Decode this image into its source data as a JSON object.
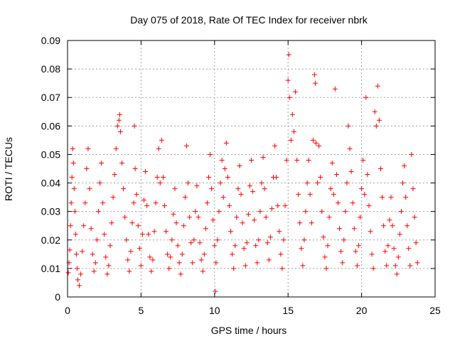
{
  "chart_data": {
    "type": "scatter",
    "title": "Day 075 of 2018, Rate Of TEC Index for receiver nbrk",
    "xlabel": "GPS time / hours",
    "ylabel": "ROTI / TECUs",
    "xlim": [
      0,
      25
    ],
    "ylim": [
      0,
      0.09
    ],
    "x_ticks": [
      "0",
      "5",
      "10",
      "15",
      "20",
      "25"
    ],
    "y_ticks": [
      "0",
      "0.01",
      "0.02",
      "0.03",
      "0.04",
      "0.05",
      "0.06",
      "0.07",
      "0.08",
      "0.09"
    ],
    "grid": true,
    "marker": "+",
    "point_color": "#ff0000",
    "series": [
      {
        "points": [
          [
            0.05,
            0.0085
          ],
          [
            0.1,
            0.012
          ],
          [
            0.15,
            0.0165
          ],
          [
            0.2,
            0.025
          ],
          [
            0.25,
            0.033
          ],
          [
            0.3,
            0.042
          ],
          [
            0.35,
            0.052
          ],
          [
            0.4,
            0.047
          ],
          [
            0.45,
            0.038
          ],
          [
            0.5,
            0.03
          ],
          [
            0.55,
            0.022
          ],
          [
            0.6,
            0.015
          ],
          [
            0.65,
            0.01
          ],
          [
            0.7,
            0.006
          ],
          [
            0.8,
            0.004
          ],
          [
            0.9,
            0.008
          ],
          [
            1.0,
            0.016
          ],
          [
            1.1,
            0.025
          ],
          [
            1.2,
            0.033
          ],
          [
            1.3,
            0.045
          ],
          [
            1.4,
            0.052
          ],
          [
            1.5,
            0.038
          ],
          [
            1.6,
            0.024
          ],
          [
            1.7,
            0.015
          ],
          [
            1.8,
            0.009
          ],
          [
            1.9,
            0.012
          ],
          [
            2.0,
            0.02
          ],
          [
            2.1,
            0.03
          ],
          [
            2.2,
            0.04
          ],
          [
            2.3,
            0.047
          ],
          [
            2.4,
            0.033
          ],
          [
            2.5,
            0.022
          ],
          [
            2.6,
            0.014
          ],
          [
            2.7,
            0.008
          ],
          [
            2.8,
            0.011
          ],
          [
            2.9,
            0.018
          ],
          [
            3.0,
            0.026
          ],
          [
            3.1,
            0.035
          ],
          [
            3.2,
            0.043
          ],
          [
            3.3,
            0.052
          ],
          [
            3.4,
            0.06
          ],
          [
            3.5,
            0.062
          ],
          [
            3.55,
            0.064
          ],
          [
            3.6,
            0.058
          ],
          [
            3.7,
            0.047
          ],
          [
            3.8,
            0.038
          ],
          [
            3.9,
            0.028
          ],
          [
            4.0,
            0.02
          ],
          [
            4.1,
            0.013
          ],
          [
            4.2,
            0.009
          ],
          [
            4.3,
            0.016
          ],
          [
            4.4,
            0.026
          ],
          [
            4.5,
            0.033
          ],
          [
            4.55,
            0.06
          ],
          [
            4.6,
            0.045
          ],
          [
            4.7,
            0.036
          ],
          [
            4.8,
            0.025
          ],
          [
            4.9,
            0.017
          ],
          [
            5.0,
            0.011
          ],
          [
            5.1,
            0.022
          ],
          [
            5.2,
            0.034
          ],
          [
            5.3,
            0.044
          ],
          [
            5.4,
            0.032
          ],
          [
            5.5,
            0.022
          ],
          [
            5.6,
            0.014
          ],
          [
            5.7,
            0.009
          ],
          [
            5.8,
            0.013
          ],
          [
            5.9,
            0.023
          ],
          [
            6.0,
            0.033
          ],
          [
            6.1,
            0.042
          ],
          [
            6.2,
            0.052
          ],
          [
            6.3,
            0.04
          ],
          [
            6.4,
            0.055
          ],
          [
            6.5,
            0.042
          ],
          [
            6.6,
            0.032
          ],
          [
            6.7,
            0.023
          ],
          [
            6.8,
            0.015
          ],
          [
            6.9,
            0.01
          ],
          [
            7.0,
            0.014
          ],
          [
            7.1,
            0.02
          ],
          [
            7.2,
            0.029
          ],
          [
            7.3,
            0.038
          ],
          [
            7.4,
            0.026
          ],
          [
            7.5,
            0.018
          ],
          [
            7.6,
            0.012
          ],
          [
            7.7,
            0.008
          ],
          [
            7.8,
            0.015
          ],
          [
            7.9,
            0.025
          ],
          [
            8.0,
            0.035
          ],
          [
            8.1,
            0.053
          ],
          [
            8.2,
            0.04
          ],
          [
            8.3,
            0.028
          ],
          [
            8.4,
            0.019
          ],
          [
            8.5,
            0.012
          ],
          [
            8.6,
            0.02
          ],
          [
            8.7,
            0.03
          ],
          [
            8.8,
            0.039
          ],
          [
            8.9,
            0.028
          ],
          [
            9.0,
            0.019
          ],
          [
            9.1,
            0.013
          ],
          [
            9.2,
            0.009
          ],
          [
            9.3,
            0.015
          ],
          [
            9.4,
            0.024
          ],
          [
            9.5,
            0.033
          ],
          [
            9.6,
            0.042
          ],
          [
            9.7,
            0.05
          ],
          [
            9.8,
            0.038
          ],
          [
            9.9,
            0.027
          ],
          [
            10.0,
            0.018
          ],
          [
            10.05,
            0.002
          ],
          [
            10.1,
            0.012
          ],
          [
            10.2,
            0.02
          ],
          [
            10.3,
            0.03
          ],
          [
            10.4,
            0.04
          ],
          [
            10.5,
            0.048
          ],
          [
            10.6,
            0.035
          ],
          [
            10.7,
            0.045
          ],
          [
            10.8,
            0.054
          ],
          [
            10.9,
            0.042
          ],
          [
            11.0,
            0.032
          ],
          [
            11.1,
            0.023
          ],
          [
            11.2,
            0.015
          ],
          [
            11.3,
            0.01
          ],
          [
            11.4,
            0.018
          ],
          [
            11.5,
            0.028
          ],
          [
            11.6,
            0.038
          ],
          [
            11.7,
            0.046
          ],
          [
            11.8,
            0.036
          ],
          [
            11.9,
            0.026
          ],
          [
            12.0,
            0.017
          ],
          [
            12.1,
            0.011
          ],
          [
            12.2,
            0.019
          ],
          [
            12.3,
            0.029
          ],
          [
            12.4,
            0.039
          ],
          [
            12.5,
            0.048
          ],
          [
            12.6,
            0.037
          ],
          [
            12.7,
            0.027
          ],
          [
            12.8,
            0.018
          ],
          [
            12.9,
            0.012
          ],
          [
            13.0,
            0.02
          ],
          [
            13.1,
            0.03
          ],
          [
            13.2,
            0.04
          ],
          [
            13.3,
            0.049
          ],
          [
            13.4,
            0.038
          ],
          [
            13.5,
            0.028
          ],
          [
            13.6,
            0.019
          ],
          [
            13.7,
            0.013
          ],
          [
            13.8,
            0.021
          ],
          [
            13.9,
            0.031
          ],
          [
            14.0,
            0.042
          ],
          [
            14.1,
            0.053
          ],
          [
            14.2,
            0.042
          ],
          [
            14.3,
            0.032
          ],
          [
            14.4,
            0.023
          ],
          [
            14.5,
            0.015
          ],
          [
            14.6,
            0.01
          ],
          [
            14.7,
            0.02
          ],
          [
            14.8,
            0.032
          ],
          [
            14.9,
            0.048
          ],
          [
            15.0,
            0.076
          ],
          [
            15.05,
            0.085
          ],
          [
            15.1,
            0.07
          ],
          [
            15.2,
            0.055
          ],
          [
            15.3,
            0.064
          ],
          [
            15.4,
            0.058
          ],
          [
            15.5,
            0.072
          ],
          [
            15.6,
            0.048
          ],
          [
            15.7,
            0.036
          ],
          [
            15.8,
            0.026
          ],
          [
            15.9,
            0.017
          ],
          [
            16.0,
            0.011
          ],
          [
            16.1,
            0.02
          ],
          [
            16.2,
            0.03
          ],
          [
            16.3,
            0.04
          ],
          [
            16.4,
            0.048
          ],
          [
            16.5,
            0.036
          ],
          [
            16.6,
            0.026
          ],
          [
            16.7,
            0.055
          ],
          [
            16.8,
            0.078
          ],
          [
            16.85,
            0.075
          ],
          [
            16.9,
            0.054
          ],
          [
            17.0,
            0.04
          ],
          [
            17.1,
            0.053
          ],
          [
            17.2,
            0.042
          ],
          [
            17.3,
            0.03
          ],
          [
            17.4,
            0.021
          ],
          [
            17.5,
            0.014
          ],
          [
            17.6,
            0.01
          ],
          [
            17.7,
            0.018
          ],
          [
            17.8,
            0.028
          ],
          [
            17.9,
            0.038
          ],
          [
            18.0,
            0.047
          ],
          [
            18.1,
            0.036
          ],
          [
            18.2,
            0.073
          ],
          [
            18.3,
            0.043
          ],
          [
            18.4,
            0.033
          ],
          [
            18.5,
            0.024
          ],
          [
            18.6,
            0.016
          ],
          [
            18.7,
            0.012
          ],
          [
            18.8,
            0.02
          ],
          [
            18.9,
            0.03
          ],
          [
            19.0,
            0.04
          ],
          [
            19.1,
            0.06
          ],
          [
            19.2,
            0.052
          ],
          [
            19.3,
            0.044
          ],
          [
            19.4,
            0.033
          ],
          [
            19.5,
            0.024
          ],
          [
            19.6,
            0.016
          ],
          [
            19.7,
            0.011
          ],
          [
            19.8,
            0.018
          ],
          [
            19.9,
            0.028
          ],
          [
            20.0,
            0.038
          ],
          [
            20.1,
            0.048
          ],
          [
            20.2,
            0.036
          ],
          [
            20.3,
            0.07
          ],
          [
            20.4,
            0.043
          ],
          [
            20.5,
            0.032
          ],
          [
            20.6,
            0.023
          ],
          [
            20.7,
            0.015
          ],
          [
            20.8,
            0.01
          ],
          [
            20.9,
            0.065
          ],
          [
            21.0,
            0.06
          ],
          [
            21.1,
            0.074
          ],
          [
            21.2,
            0.062
          ],
          [
            21.3,
            0.045
          ],
          [
            21.4,
            0.035
          ],
          [
            21.5,
            0.025
          ],
          [
            21.6,
            0.016
          ],
          [
            21.7,
            0.011
          ],
          [
            21.8,
            0.018
          ],
          [
            21.9,
            0.027
          ],
          [
            22.0,
            0.035
          ],
          [
            22.1,
            0.025
          ],
          [
            22.2,
            0.017
          ],
          [
            22.3,
            0.011
          ],
          [
            22.4,
            0.008
          ],
          [
            22.5,
            0.014
          ],
          [
            22.6,
            0.022
          ],
          [
            22.7,
            0.03
          ],
          [
            22.8,
            0.04
          ],
          [
            22.9,
            0.046
          ],
          [
            23.0,
            0.035
          ],
          [
            23.1,
            0.025
          ],
          [
            23.2,
            0.017
          ],
          [
            23.3,
            0.011
          ],
          [
            23.4,
            0.05
          ],
          [
            23.5,
            0.038
          ],
          [
            23.6,
            0.028
          ],
          [
            23.7,
            0.019
          ],
          [
            23.8,
            0.012
          ]
        ]
      }
    ]
  }
}
